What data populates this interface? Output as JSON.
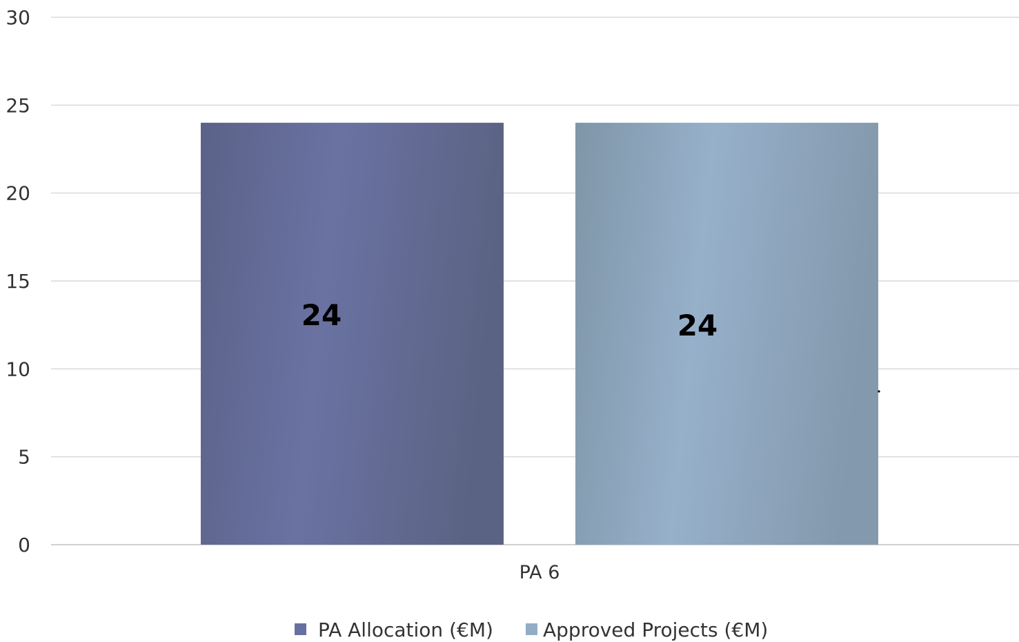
{
  "chart_data": {
    "type": "bar",
    "title": "",
    "xlabel": "",
    "ylabel": "",
    "categories": [
      "PA 6"
    ],
    "ylim": [
      0,
      30
    ],
    "yticks": [
      0,
      5,
      10,
      15,
      20,
      25,
      30
    ],
    "grid": true,
    "legend_position": "bottom",
    "series": [
      {
        "name": "PA Allocation (€M)",
        "values": [
          24
        ],
        "data_labels": [
          "24"
        ],
        "color": "#6770a0"
      },
      {
        "name": "Approved Projects (€M)",
        "values": [
          24
        ],
        "data_labels": [
          "24"
        ],
        "color": "#93adc6"
      }
    ]
  }
}
